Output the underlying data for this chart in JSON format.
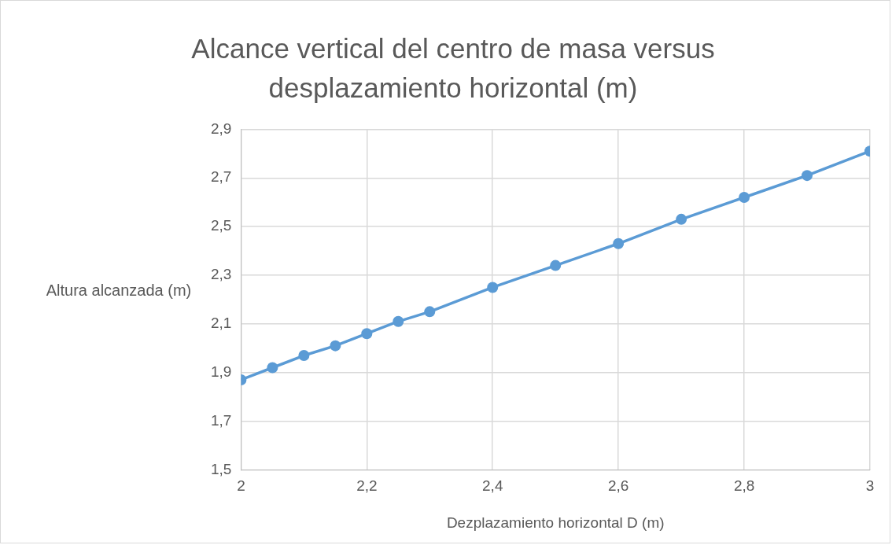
{
  "chart_data": {
    "type": "line",
    "title": "Alcance vertical del centro de masa versus desplazamiento horizontal (m)",
    "xlabel": "Dezplazamiento horizontal D (m)",
    "ylabel": "Altura alcanzada (m)",
    "x": [
      2,
      2.05,
      2.1,
      2.15,
      2.2,
      2.25,
      2.3,
      2.4,
      2.5,
      2.6,
      2.7,
      2.8,
      2.9,
      3
    ],
    "series": [
      {
        "color": "#5b9bd5",
        "values": [
          1.87,
          1.92,
          1.97,
          2.01,
          2.06,
          2.11,
          2.15,
          2.25,
          2.34,
          2.43,
          2.53,
          2.62,
          2.71,
          2.81
        ]
      }
    ],
    "xlim": [
      2,
      3
    ],
    "xticks": [
      2,
      {
        "value": 2.2,
        "label": "2,2"
      },
      {
        "value": 2.4,
        "label": "2,4"
      },
      {
        "value": 2.6,
        "label": "2,6"
      },
      {
        "value": 2.8,
        "label": "2,8"
      },
      3
    ],
    "ylim": [
      1.5,
      2.9
    ],
    "yticks": [
      {
        "value": 1.5,
        "label": "1,5"
      },
      {
        "value": 1.7,
        "label": "1,7"
      },
      {
        "value": 1.9,
        "label": "1,9"
      },
      {
        "value": 2.1,
        "label": "2,1"
      },
      {
        "value": 2.3,
        "label": "2,3"
      },
      {
        "value": 2.5,
        "label": "2,5"
      },
      {
        "value": 2.7,
        "label": "2,7"
      },
      {
        "value": 2.9,
        "label": "2,9"
      }
    ],
    "grid": true,
    "marker": "circle",
    "line_style": "solid",
    "legend": false
  }
}
